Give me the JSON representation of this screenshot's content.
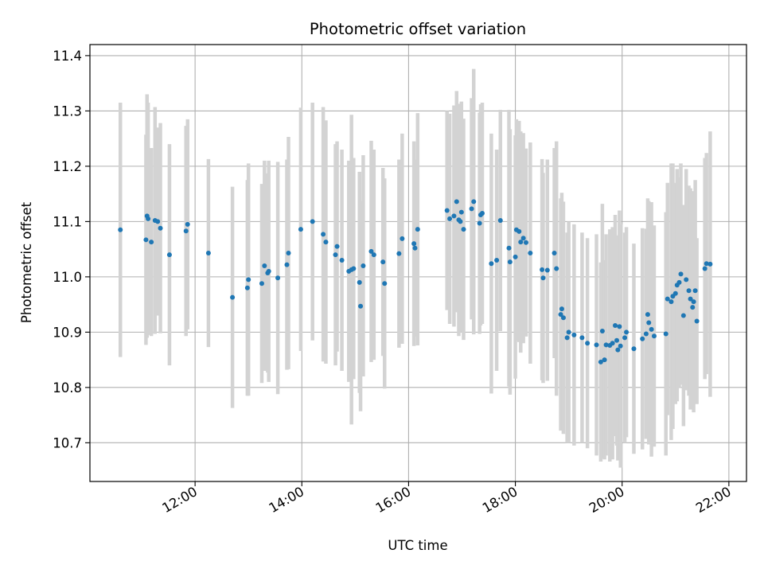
{
  "chart_data": {
    "type": "scatter",
    "title": "Photometric offset variation",
    "xlabel": "UTC time",
    "ylabel": "Photometric offset",
    "x_unit": "hour_of_day",
    "xlim": [
      10.03,
      22.33
    ],
    "ylim": [
      10.63,
      11.42
    ],
    "xticks": [
      12,
      14,
      16,
      18,
      20,
      22
    ],
    "xtick_labels": [
      "12:00",
      "14:00",
      "16:00",
      "18:00",
      "20:00",
      "22:00"
    ],
    "yticks": [
      10.7,
      10.8,
      10.9,
      11.0,
      11.1,
      11.2,
      11.3,
      11.4
    ],
    "ytick_labels": [
      "10.7",
      "10.8",
      "10.9",
      "11.0",
      "11.1",
      "11.2",
      "11.3",
      "11.4"
    ],
    "grid": true,
    "colors": {
      "points": "#1f77b4",
      "errorbars": "#d3d3d3",
      "grid": "#b0b0b0"
    },
    "points": [
      {
        "x": 10.6,
        "y": 11.085,
        "err": 0.23
      },
      {
        "x": 11.08,
        "y": 11.067,
        "err": 0.19
      },
      {
        "x": 11.1,
        "y": 11.11,
        "err": 0.22
      },
      {
        "x": 11.12,
        "y": 11.105,
        "err": 0.21
      },
      {
        "x": 11.18,
        "y": 11.063,
        "err": 0.17
      },
      {
        "x": 11.25,
        "y": 11.102,
        "err": 0.205
      },
      {
        "x": 11.3,
        "y": 11.1,
        "err": 0.17
      },
      {
        "x": 11.35,
        "y": 11.088,
        "err": 0.19
      },
      {
        "x": 11.52,
        "y": 11.04,
        "err": 0.2
      },
      {
        "x": 11.83,
        "y": 11.083,
        "err": 0.19
      },
      {
        "x": 11.86,
        "y": 11.095,
        "err": 0.19
      },
      {
        "x": 12.25,
        "y": 11.043,
        "err": 0.17
      },
      {
        "x": 12.7,
        "y": 10.963,
        "err": 0.2
      },
      {
        "x": 12.98,
        "y": 10.98,
        "err": 0.195
      },
      {
        "x": 13.0,
        "y": 10.995,
        "err": 0.21
      },
      {
        "x": 13.25,
        "y": 10.988,
        "err": 0.18
      },
      {
        "x": 13.3,
        "y": 11.02,
        "err": 0.19
      },
      {
        "x": 13.36,
        "y": 11.007,
        "err": 0.18
      },
      {
        "x": 13.38,
        "y": 11.01,
        "err": 0.2
      },
      {
        "x": 13.55,
        "y": 10.998,
        "err": 0.21
      },
      {
        "x": 13.72,
        "y": 11.022,
        "err": 0.19
      },
      {
        "x": 13.75,
        "y": 11.043,
        "err": 0.21
      },
      {
        "x": 13.98,
        "y": 11.086,
        "err": 0.22
      },
      {
        "x": 14.2,
        "y": 11.1,
        "err": 0.215
      },
      {
        "x": 14.4,
        "y": 11.077,
        "err": 0.23
      },
      {
        "x": 14.45,
        "y": 11.063,
        "err": 0.22
      },
      {
        "x": 14.63,
        "y": 11.04,
        "err": 0.2
      },
      {
        "x": 14.66,
        "y": 11.055,
        "err": 0.19
      },
      {
        "x": 14.75,
        "y": 11.03,
        "err": 0.2
      },
      {
        "x": 14.88,
        "y": 11.01,
        "err": 0.2
      },
      {
        "x": 14.93,
        "y": 11.013,
        "err": 0.28
      },
      {
        "x": 14.97,
        "y": 11.015,
        "err": 0.2
      },
      {
        "x": 15.08,
        "y": 10.99,
        "err": 0.2
      },
      {
        "x": 15.1,
        "y": 10.947,
        "err": 0.19
      },
      {
        "x": 15.15,
        "y": 11.02,
        "err": 0.2
      },
      {
        "x": 15.3,
        "y": 11.046,
        "err": 0.2
      },
      {
        "x": 15.35,
        "y": 11.04,
        "err": 0.19
      },
      {
        "x": 15.52,
        "y": 11.027,
        "err": 0.17
      },
      {
        "x": 15.55,
        "y": 10.988,
        "err": 0.19
      },
      {
        "x": 15.82,
        "y": 11.042,
        "err": 0.17
      },
      {
        "x": 15.88,
        "y": 11.069,
        "err": 0.19
      },
      {
        "x": 16.1,
        "y": 11.06,
        "err": 0.185
      },
      {
        "x": 16.12,
        "y": 11.052,
        "err": 0.16
      },
      {
        "x": 16.17,
        "y": 11.086,
        "err": 0.21
      },
      {
        "x": 16.72,
        "y": 11.12,
        "err": 0.18
      },
      {
        "x": 16.77,
        "y": 11.105,
        "err": 0.19
      },
      {
        "x": 16.85,
        "y": 11.11,
        "err": 0.2
      },
      {
        "x": 16.9,
        "y": 11.136,
        "err": 0.2
      },
      {
        "x": 16.94,
        "y": 11.103,
        "err": 0.21
      },
      {
        "x": 16.97,
        "y": 11.1,
        "err": 0.2
      },
      {
        "x": 16.99,
        "y": 11.117,
        "err": 0.2
      },
      {
        "x": 17.03,
        "y": 11.086,
        "err": 0.2
      },
      {
        "x": 17.18,
        "y": 11.123,
        "err": 0.2
      },
      {
        "x": 17.22,
        "y": 11.136,
        "err": 0.24
      },
      {
        "x": 17.33,
        "y": 11.097,
        "err": 0.2
      },
      {
        "x": 17.35,
        "y": 11.112,
        "err": 0.2
      },
      {
        "x": 17.38,
        "y": 11.115,
        "err": 0.2
      },
      {
        "x": 17.55,
        "y": 11.024,
        "err": 0.235
      },
      {
        "x": 17.65,
        "y": 11.03,
        "err": 0.2
      },
      {
        "x": 17.72,
        "y": 11.102,
        "err": 0.2
      },
      {
        "x": 17.88,
        "y": 11.052,
        "err": 0.25
      },
      {
        "x": 17.9,
        "y": 11.027,
        "err": 0.24
      },
      {
        "x": 18.0,
        "y": 11.036,
        "err": 0.22
      },
      {
        "x": 18.02,
        "y": 11.085,
        "err": 0.2
      },
      {
        "x": 18.07,
        "y": 11.082,
        "err": 0.2
      },
      {
        "x": 18.1,
        "y": 11.063,
        "err": 0.2
      },
      {
        "x": 18.15,
        "y": 11.07,
        "err": 0.19
      },
      {
        "x": 18.2,
        "y": 11.062,
        "err": 0.17
      },
      {
        "x": 18.28,
        "y": 11.043,
        "err": 0.2
      },
      {
        "x": 18.5,
        "y": 11.013,
        "err": 0.2
      },
      {
        "x": 18.52,
        "y": 10.998,
        "err": 0.19
      },
      {
        "x": 18.6,
        "y": 11.012,
        "err": 0.2
      },
      {
        "x": 18.73,
        "y": 11.043,
        "err": 0.19
      },
      {
        "x": 18.77,
        "y": 11.015,
        "err": 0.23
      },
      {
        "x": 18.85,
        "y": 10.932,
        "err": 0.21
      },
      {
        "x": 18.87,
        "y": 10.942,
        "err": 0.21
      },
      {
        "x": 18.9,
        "y": 10.926,
        "err": 0.21
      },
      {
        "x": 18.97,
        "y": 10.89,
        "err": 0.19
      },
      {
        "x": 19.0,
        "y": 10.9,
        "err": 0.2
      },
      {
        "x": 19.1,
        "y": 10.895,
        "err": 0.2
      },
      {
        "x": 19.25,
        "y": 10.89,
        "err": 0.19
      },
      {
        "x": 19.35,
        "y": 10.88,
        "err": 0.19
      },
      {
        "x": 19.52,
        "y": 10.877,
        "err": 0.2
      },
      {
        "x": 19.6,
        "y": 10.846,
        "err": 0.18
      },
      {
        "x": 19.63,
        "y": 10.902,
        "err": 0.23
      },
      {
        "x": 19.67,
        "y": 10.85,
        "err": 0.18
      },
      {
        "x": 19.7,
        "y": 10.877,
        "err": 0.2
      },
      {
        "x": 19.77,
        "y": 10.876,
        "err": 0.21
      },
      {
        "x": 19.82,
        "y": 10.88,
        "err": 0.21
      },
      {
        "x": 19.87,
        "y": 10.912,
        "err": 0.2
      },
      {
        "x": 19.9,
        "y": 10.885,
        "err": 0.19
      },
      {
        "x": 19.92,
        "y": 10.868,
        "err": 0.2
      },
      {
        "x": 19.95,
        "y": 10.91,
        "err": 0.21
      },
      {
        "x": 19.97,
        "y": 10.875,
        "err": 0.22
      },
      {
        "x": 20.05,
        "y": 10.89,
        "err": 0.19
      },
      {
        "x": 20.08,
        "y": 10.9,
        "err": 0.19
      },
      {
        "x": 20.22,
        "y": 10.87,
        "err": 0.19
      },
      {
        "x": 20.38,
        "y": 10.888,
        "err": 0.2
      },
      {
        "x": 20.45,
        "y": 10.897,
        "err": 0.19
      },
      {
        "x": 20.48,
        "y": 10.932,
        "err": 0.21
      },
      {
        "x": 20.5,
        "y": 10.917,
        "err": 0.22
      },
      {
        "x": 20.55,
        "y": 10.905,
        "err": 0.23
      },
      {
        "x": 20.6,
        "y": 10.893,
        "err": 0.2
      },
      {
        "x": 20.82,
        "y": 10.897,
        "err": 0.22
      },
      {
        "x": 20.85,
        "y": 10.96,
        "err": 0.21
      },
      {
        "x": 20.92,
        "y": 10.955,
        "err": 0.25
      },
      {
        "x": 20.95,
        "y": 10.965,
        "err": 0.24
      },
      {
        "x": 21.0,
        "y": 10.97,
        "err": 0.2
      },
      {
        "x": 21.03,
        "y": 10.985,
        "err": 0.21
      },
      {
        "x": 21.07,
        "y": 10.99,
        "err": 0.19
      },
      {
        "x": 21.1,
        "y": 11.005,
        "err": 0.2
      },
      {
        "x": 21.15,
        "y": 10.93,
        "err": 0.2
      },
      {
        "x": 21.2,
        "y": 10.995,
        "err": 0.2
      },
      {
        "x": 21.25,
        "y": 10.975,
        "err": 0.19
      },
      {
        "x": 21.28,
        "y": 10.96,
        "err": 0.2
      },
      {
        "x": 21.32,
        "y": 10.945,
        "err": 0.18
      },
      {
        "x": 21.34,
        "y": 10.955,
        "err": 0.2
      },
      {
        "x": 21.37,
        "y": 10.975,
        "err": 0.2
      },
      {
        "x": 21.4,
        "y": 10.92,
        "err": 0.15
      },
      {
        "x": 21.55,
        "y": 11.015,
        "err": 0.2
      },
      {
        "x": 21.58,
        "y": 11.024,
        "err": 0.2
      },
      {
        "x": 21.65,
        "y": 11.023,
        "err": 0.24
      }
    ]
  }
}
